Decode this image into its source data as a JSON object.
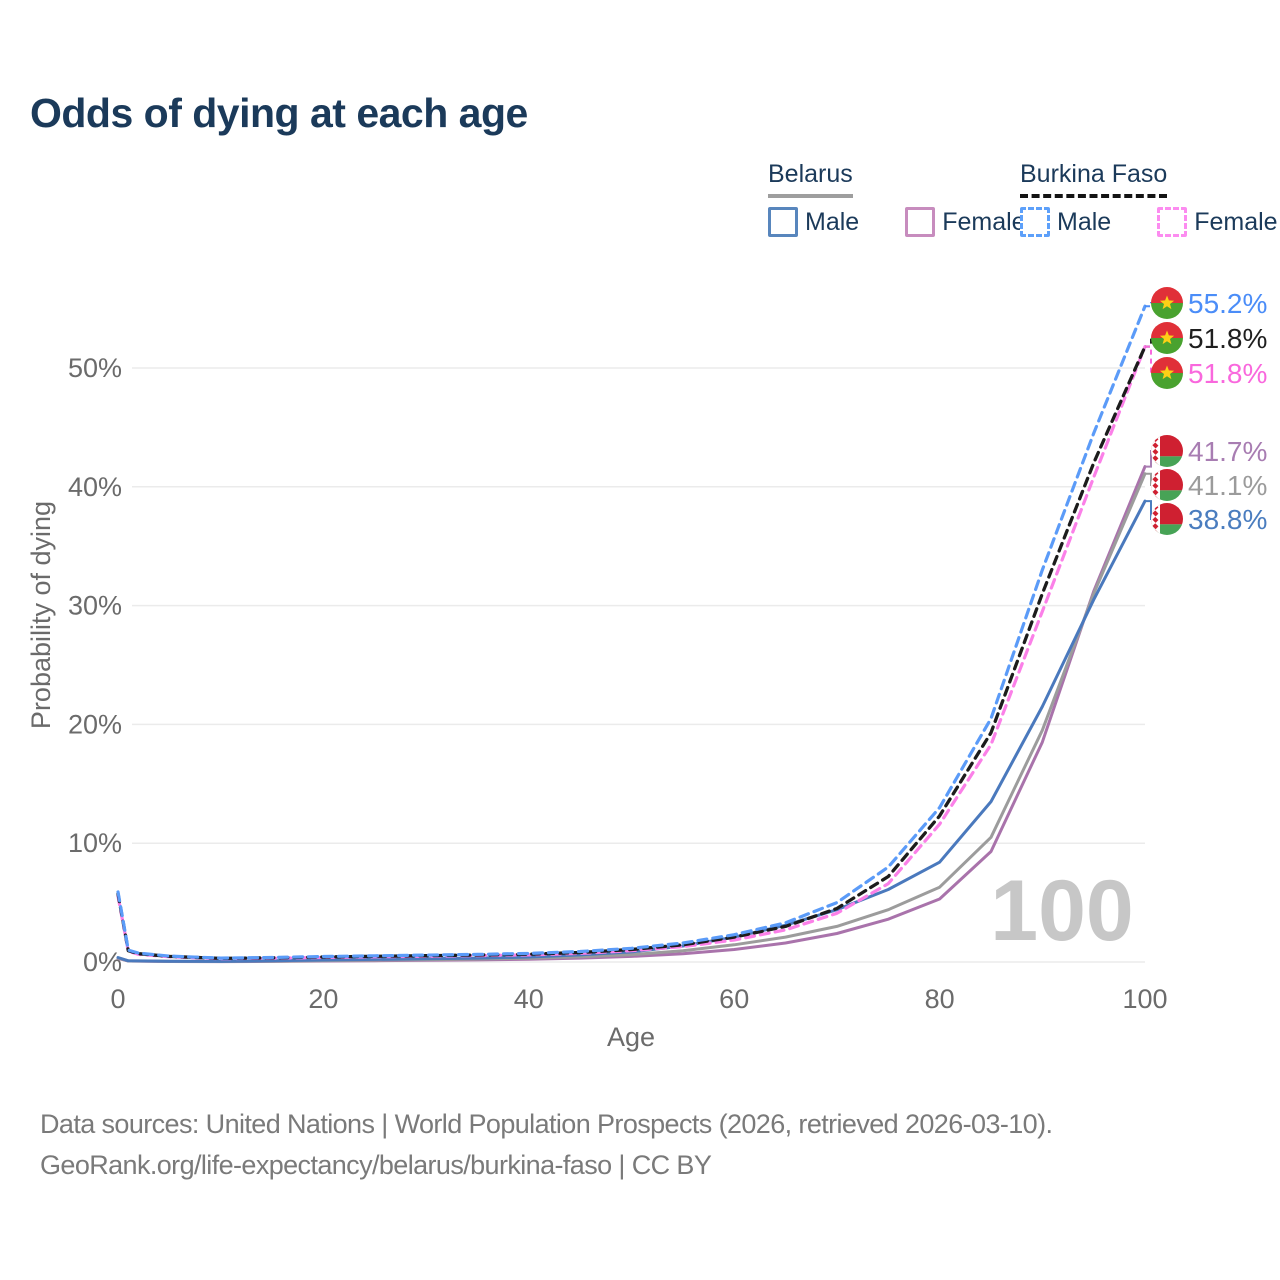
{
  "title": "Odds of dying at each age",
  "legend": {
    "groups": [
      {
        "name": "Belarus",
        "line_style": "solid",
        "underline_color": "#9e9e9e",
        "items": [
          {
            "label": "Male",
            "color": "#5886bd",
            "line_style": "solid"
          },
          {
            "label": "Female",
            "color": "#c78cbe",
            "line_style": "solid"
          }
        ]
      },
      {
        "name": "Burkina Faso",
        "line_style": "dashed",
        "underline_color": "#141414",
        "items": [
          {
            "label": "Male",
            "color": "#5da0fa",
            "line_style": "dashed"
          },
          {
            "label": "Female",
            "color": "#fc8cf0",
            "line_style": "dashed"
          }
        ]
      }
    ]
  },
  "chart_data": {
    "type": "line",
    "title": "Odds of dying at each age",
    "xlabel": "Age",
    "ylabel": "Probability of dying",
    "xlim": [
      0,
      100
    ],
    "ylim_pct": [
      0,
      56
    ],
    "x_ticks": [
      0,
      20,
      40,
      60,
      80,
      100
    ],
    "y_ticks_pct": [
      0,
      10,
      20,
      30,
      40,
      50
    ],
    "grid": "horizontal",
    "hover_age_watermark": "100",
    "series": [
      {
        "id": "by-female",
        "name": "Belarus Female",
        "color": "#a973ab",
        "dash": "none",
        "width": 3,
        "points": [
          [
            0,
            0.3
          ],
          [
            1,
            0.08
          ],
          [
            5,
            0.04
          ],
          [
            10,
            0.035
          ],
          [
            15,
            0.05
          ],
          [
            20,
            0.08
          ],
          [
            25,
            0.11
          ],
          [
            30,
            0.14
          ],
          [
            35,
            0.18
          ],
          [
            40,
            0.23
          ],
          [
            45,
            0.33
          ],
          [
            50,
            0.47
          ],
          [
            55,
            0.7
          ],
          [
            60,
            1.05
          ],
          [
            65,
            1.6
          ],
          [
            70,
            2.4
          ],
          [
            75,
            3.6
          ],
          [
            80,
            5.3
          ],
          [
            85,
            9.3
          ],
          [
            90,
            18.5
          ],
          [
            95,
            31.2
          ],
          [
            100,
            41.7
          ]
        ]
      },
      {
        "id": "by-total",
        "name": "Belarus Both sexes",
        "color": "#9c9c9c",
        "dash": "none",
        "width": 3,
        "points": [
          [
            0,
            0.33
          ],
          [
            1,
            0.09
          ],
          [
            5,
            0.05
          ],
          [
            10,
            0.04
          ],
          [
            15,
            0.07
          ],
          [
            20,
            0.12
          ],
          [
            25,
            0.16
          ],
          [
            30,
            0.2
          ],
          [
            35,
            0.25
          ],
          [
            40,
            0.32
          ],
          [
            45,
            0.45
          ],
          [
            50,
            0.62
          ],
          [
            55,
            0.95
          ],
          [
            60,
            1.45
          ],
          [
            65,
            2.1
          ],
          [
            70,
            3.0
          ],
          [
            75,
            4.4
          ],
          [
            80,
            6.3
          ],
          [
            85,
            10.5
          ],
          [
            90,
            19.5
          ],
          [
            95,
            31.0
          ],
          [
            100,
            41.1
          ]
        ]
      },
      {
        "id": "by-male",
        "name": "Belarus Male",
        "color": "#4a79bd",
        "dash": "none",
        "width": 3,
        "points": [
          [
            0,
            0.38
          ],
          [
            1,
            0.1
          ],
          [
            5,
            0.06
          ],
          [
            10,
            0.05
          ],
          [
            15,
            0.1
          ],
          [
            20,
            0.17
          ],
          [
            25,
            0.22
          ],
          [
            30,
            0.28
          ],
          [
            35,
            0.33
          ],
          [
            40,
            0.42
          ],
          [
            45,
            0.6
          ],
          [
            50,
            0.85
          ],
          [
            55,
            1.35
          ],
          [
            60,
            2.1
          ],
          [
            65,
            3.1
          ],
          [
            70,
            4.4
          ],
          [
            75,
            6.1
          ],
          [
            80,
            8.4
          ],
          [
            85,
            13.5
          ],
          [
            90,
            21.5
          ],
          [
            95,
            30.5
          ],
          [
            100,
            38.8
          ]
        ]
      },
      {
        "id": "bf-female",
        "name": "Burkina Faso Female",
        "color": "#fb80e8",
        "dash": "9 6",
        "width": 3.2,
        "points": [
          [
            0,
            5.55
          ],
          [
            1,
            0.9
          ],
          [
            2,
            0.65
          ],
          [
            5,
            0.44
          ],
          [
            10,
            0.28
          ],
          [
            15,
            0.32
          ],
          [
            20,
            0.38
          ],
          [
            25,
            0.44
          ],
          [
            30,
            0.48
          ],
          [
            35,
            0.54
          ],
          [
            40,
            0.6
          ],
          [
            45,
            0.72
          ],
          [
            50,
            0.95
          ],
          [
            55,
            1.3
          ],
          [
            60,
            1.85
          ],
          [
            65,
            2.7
          ],
          [
            70,
            4.1
          ],
          [
            75,
            6.6
          ],
          [
            80,
            11.6
          ],
          [
            85,
            18.3
          ],
          [
            90,
            29.5
          ],
          [
            95,
            40.8
          ],
          [
            100,
            51.8
          ]
        ]
      },
      {
        "id": "bf-total",
        "name": "Burkina Faso Both sexes",
        "color": "#1c1c1c",
        "dash": "8 6",
        "width": 3.3,
        "points": [
          [
            0,
            5.75
          ],
          [
            1,
            0.95
          ],
          [
            2,
            0.7
          ],
          [
            5,
            0.47
          ],
          [
            10,
            0.3
          ],
          [
            15,
            0.35
          ],
          [
            20,
            0.42
          ],
          [
            25,
            0.48
          ],
          [
            30,
            0.53
          ],
          [
            35,
            0.59
          ],
          [
            40,
            0.66
          ],
          [
            45,
            0.8
          ],
          [
            50,
            1.05
          ],
          [
            55,
            1.45
          ],
          [
            60,
            2.1
          ],
          [
            65,
            3.0
          ],
          [
            70,
            4.5
          ],
          [
            75,
            7.2
          ],
          [
            80,
            12.3
          ],
          [
            85,
            19.3
          ],
          [
            90,
            31.0
          ],
          [
            95,
            42.0
          ],
          [
            100,
            51.8
          ]
        ]
      },
      {
        "id": "bf-male",
        "name": "Burkina Faso Male",
        "color": "#5b9bf8",
        "dash": "9 6",
        "width": 3.2,
        "points": [
          [
            0,
            5.9
          ],
          [
            1,
            1.0
          ],
          [
            2,
            0.75
          ],
          [
            5,
            0.5
          ],
          [
            10,
            0.33
          ],
          [
            15,
            0.38
          ],
          [
            20,
            0.46
          ],
          [
            25,
            0.52
          ],
          [
            30,
            0.58
          ],
          [
            35,
            0.64
          ],
          [
            40,
            0.72
          ],
          [
            45,
            0.88
          ],
          [
            50,
            1.15
          ],
          [
            55,
            1.6
          ],
          [
            60,
            2.3
          ],
          [
            65,
            3.3
          ],
          [
            70,
            5.0
          ],
          [
            75,
            8.0
          ],
          [
            80,
            13.0
          ],
          [
            85,
            20.5
          ],
          [
            90,
            33.0
          ],
          [
            95,
            44.5
          ],
          [
            100,
            55.2
          ]
        ]
      }
    ],
    "end_labels": [
      {
        "series": "bf-male",
        "label": "55.2%",
        "color": "#4b8df8",
        "flag": "burkina-faso"
      },
      {
        "series": "bf-total",
        "label": "51.8%",
        "color": "#1f1f1f",
        "flag": "burkina-faso"
      },
      {
        "series": "bf-female",
        "label": "51.8%",
        "color": "#f968dd",
        "flag": "burkina-faso"
      },
      {
        "series": "by-female",
        "label": "41.7%",
        "color": "#a87db2",
        "flag": "belarus"
      },
      {
        "series": "by-total",
        "label": "41.1%",
        "color": "#9b9b9b",
        "flag": "belarus"
      },
      {
        "series": "by-male",
        "label": "38.8%",
        "color": "#4a7dbf",
        "flag": "belarus"
      }
    ],
    "flag_colors": {
      "burkina_faso": {
        "red": "#e03038",
        "green": "#49a22f",
        "star": "#fcd116"
      },
      "belarus": {
        "red": "#cf2031",
        "green": "#47a356",
        "white": "#ffffff"
      }
    },
    "axis_text_color": "#6b6b6b",
    "grid_color": "#ebebeb",
    "watermark_color": "#c7c7c7"
  },
  "footer": {
    "line1": "Data sources: United Nations | World Population Prospects (2026, retrieved 2026-03-10).",
    "line2": "GeoRank.org/life-expectancy/belarus/burkina-faso | CC BY"
  }
}
